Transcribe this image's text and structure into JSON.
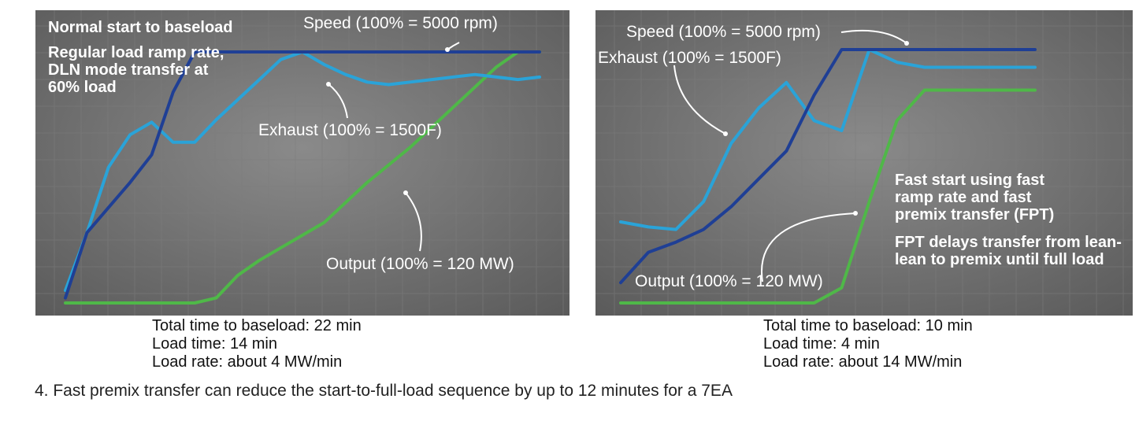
{
  "figure_caption": "4. Fast premix transfer can reduce the start-to-full-load sequence by up to 12 minutes for a 7EA",
  "colors": {
    "speed": "#1f3f95",
    "exhaust": "#2aa3d8",
    "output": "#4fb848",
    "panel_bg": "#6b6b6b",
    "text_on_panel": "#ffffff"
  },
  "chart_data": [
    {
      "type": "line",
      "grid": true,
      "x": [
        0,
        1,
        2,
        3,
        4,
        5,
        6,
        7,
        8,
        9,
        10,
        11,
        12,
        13,
        14,
        15,
        16,
        17,
        18,
        19,
        20,
        21,
        22
      ],
      "ylim": [
        0,
        100
      ],
      "series": [
        {
          "name": "Speed (100% = 5000 rpm)",
          "color_key": "speed",
          "values": [
            2,
            28,
            38,
            48,
            59,
            84,
            100,
            100,
            100,
            100,
            100,
            100,
            100,
            100,
            100,
            100,
            100,
            100,
            100,
            100,
            100,
            100,
            100
          ]
        },
        {
          "name": "Exhaust (100% = 1500F)",
          "color_key": "exhaust",
          "values": [
            5,
            28,
            54,
            67,
            72,
            64,
            64,
            73,
            81,
            89,
            97,
            100,
            95,
            91,
            88,
            87,
            88,
            89,
            90,
            91,
            90,
            89,
            90
          ]
        },
        {
          "name": "Output (100% = 120 MW)",
          "color_key": "output",
          "values": [
            0,
            0,
            0,
            0,
            0,
            0,
            0,
            2,
            11,
            17,
            22,
            27,
            32,
            40,
            48,
            55,
            62,
            70,
            78,
            86,
            94,
            100,
            100
          ]
        }
      ],
      "annotations": [
        "Normal start to baseload",
        "Regular load ramp rate, DLN mode transfer at 60% load"
      ],
      "stats": [
        "Total time to baseload: 22 min",
        "Load time: 14 min",
        "Load rate: about 4 MW/min"
      ]
    },
    {
      "type": "line",
      "grid": true,
      "x": [
        0,
        1,
        2,
        3,
        4,
        5,
        6,
        7,
        8,
        9,
        10,
        11,
        12,
        13,
        14,
        15
      ],
      "ylim": [
        0,
        100
      ],
      "series": [
        {
          "name": "Speed (100% = 5000 rpm)",
          "color_key": "speed",
          "values": [
            8,
            20,
            24,
            29,
            38,
            49,
            60,
            82,
            100,
            100,
            100,
            100,
            100,
            100,
            100,
            100
          ]
        },
        {
          "name": "Exhaust (100% = 1500F)",
          "color_key": "exhaust",
          "values": [
            32,
            30,
            29,
            40,
            63,
            77,
            87,
            72,
            68,
            100,
            95,
            93,
            93,
            93,
            93,
            93
          ]
        },
        {
          "name": "Output (100% = 120 MW)",
          "color_key": "output",
          "values": [
            0,
            0,
            0,
            0,
            0,
            0,
            0,
            0,
            6,
            40,
            72,
            84,
            84,
            84,
            84,
            84
          ]
        }
      ],
      "annotations": [
        "Fast start using fast ramp rate and fast premix transfer (FPT)",
        "FPT delays transfer from lean-lean to premix until full load"
      ],
      "stats": [
        "Total time to baseload: 10 min",
        "Load time: 4 min",
        "Load rate: about 14 MW/min"
      ]
    }
  ]
}
